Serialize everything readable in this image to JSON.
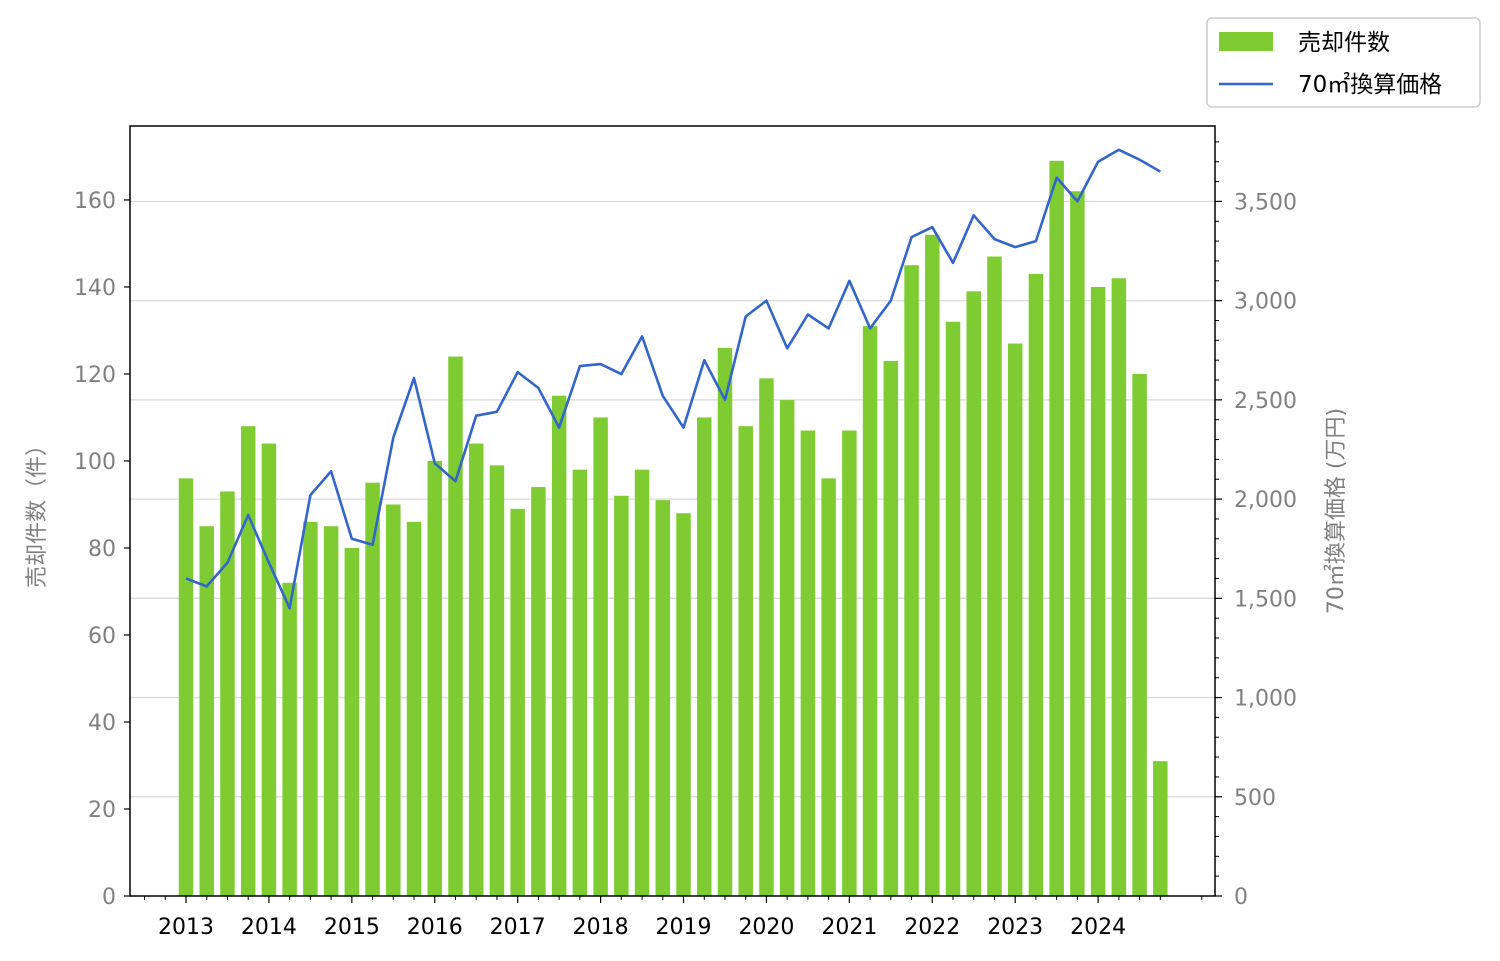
{
  "chart_data": {
    "type": "bar",
    "x": [
      "2013Q1",
      "2013Q2",
      "2013Q3",
      "2013Q4",
      "2014Q1",
      "2014Q2",
      "2014Q3",
      "2014Q4",
      "2015Q1",
      "2015Q2",
      "2015Q3",
      "2015Q4",
      "2016Q1",
      "2016Q2",
      "2016Q3",
      "2016Q4",
      "2017Q1",
      "2017Q2",
      "2017Q3",
      "2017Q4",
      "2018Q1",
      "2018Q2",
      "2018Q3",
      "2018Q4",
      "2019Q1",
      "2019Q2",
      "2019Q3",
      "2019Q4",
      "2020Q1",
      "2020Q2",
      "2020Q3",
      "2020Q4",
      "2021Q1",
      "2021Q2",
      "2021Q3",
      "2021Q4",
      "2022Q1",
      "2022Q2",
      "2022Q3",
      "2022Q4",
      "2023Q1",
      "2023Q2",
      "2023Q3",
      "2023Q4",
      "2024Q1",
      "2024Q2",
      "2024Q3",
      "2024Q4"
    ],
    "x_tick_labels": [
      "2013",
      "2014",
      "2015",
      "2016",
      "2017",
      "2018",
      "2019",
      "2020",
      "2021",
      "2022",
      "2023",
      "2024"
    ],
    "series": [
      {
        "name": "売却件数",
        "type": "bar",
        "axis": "left",
        "color": "#7fcc32",
        "values": [
          96,
          85,
          93,
          108,
          104,
          72,
          86,
          85,
          80,
          95,
          90,
          86,
          100,
          124,
          104,
          99,
          89,
          94,
          115,
          98,
          110,
          92,
          98,
          91,
          88,
          110,
          126,
          108,
          119,
          114,
          107,
          96,
          107,
          131,
          123,
          145,
          152,
          132,
          139,
          147,
          127,
          143,
          169,
          162,
          140,
          142,
          120,
          31
        ]
      },
      {
        "name": "70㎡換算価格",
        "type": "line",
        "axis": "right",
        "color": "#3366cc",
        "values": [
          1600,
          1560,
          1680,
          1920,
          1680,
          1450,
          2020,
          2140,
          1800,
          1770,
          2310,
          2610,
          2180,
          2090,
          2420,
          2440,
          2640,
          2560,
          2360,
          2670,
          2680,
          2630,
          2820,
          2520,
          2360,
          2700,
          2500,
          2920,
          3000,
          2760,
          2930,
          2860,
          3100,
          2860,
          3000,
          3320,
          3370,
          3190,
          3430,
          3310,
          3270,
          3300,
          3620,
          3500,
          3700,
          3760,
          3710,
          3650
        ]
      }
    ],
    "ylabel_left": "売却件数（件）",
    "ylabel_right": "70㎡換算価格 (万円)",
    "ylim_left": [
      0,
      177
    ],
    "ylim_right": [
      0,
      3880
    ],
    "yticks_left": [
      0,
      20,
      40,
      60,
      80,
      100,
      120,
      140,
      160
    ],
    "yticks_right": [
      0,
      500,
      1000,
      1500,
      2000,
      2500,
      3000,
      3500
    ],
    "yticks_right_labels": [
      "0",
      "500",
      "1,000",
      "1,500",
      "2,000",
      "2,500",
      "3,000",
      "3,500"
    ],
    "grid": "horizontal (right axis)",
    "legend": "top-right outside"
  }
}
